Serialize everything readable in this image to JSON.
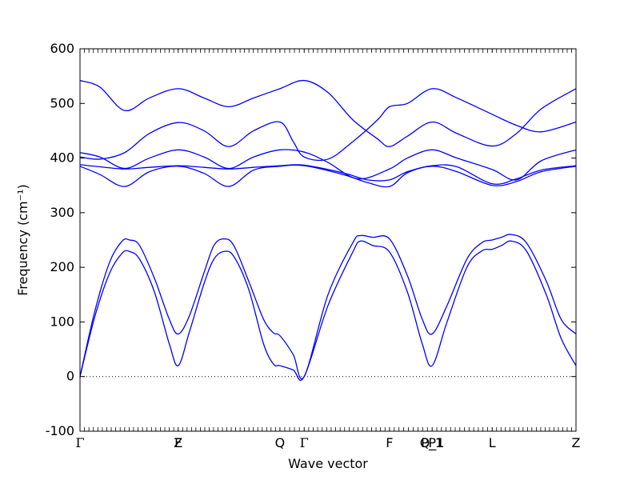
{
  "chart_data": {
    "type": "line",
    "title": "",
    "xlabel": "Wave vector",
    "ylabel": "Frequency (cm⁻¹)",
    "ylim": [
      -100,
      600
    ],
    "yticks": [
      -100,
      0,
      100,
      200,
      300,
      400,
      500,
      600
    ],
    "xlim": [
      0,
      1
    ],
    "grid": false,
    "legend": "none",
    "line_color": "#0000ff",
    "zero_line": 0,
    "high_symmetry_points": [
      {
        "label": "Γ",
        "x": 0.0
      },
      {
        "label": "F",
        "x": 0.198
      },
      {
        "label": "Z",
        "x": 0.198
      },
      {
        "label": "Q",
        "x": 0.403
      },
      {
        "label": "Γ",
        "x": 0.452
      },
      {
        "label": "F",
        "x": 0.624
      },
      {
        "label": "P",
        "x": 0.71
      },
      {
        "label": "P_1",
        "x": 0.71
      },
      {
        "label": "Q_1",
        "x": 0.71
      },
      {
        "label": "L",
        "x": 0.831
      },
      {
        "label": "Z",
        "x": 1.0
      }
    ],
    "series": [
      {
        "values": [
          [
            0.0,
            0
          ],
          [
            0.03,
            110
          ],
          [
            0.06,
            190
          ],
          [
            0.085,
            226
          ],
          [
            0.1,
            229
          ],
          [
            0.12,
            215
          ],
          [
            0.15,
            155
          ],
          [
            0.18,
            60
          ],
          [
            0.198,
            20
          ],
          [
            0.22,
            80
          ],
          [
            0.25,
            170
          ],
          [
            0.27,
            215
          ],
          [
            0.29,
            229
          ],
          [
            0.31,
            220
          ],
          [
            0.34,
            160
          ],
          [
            0.37,
            60
          ],
          [
            0.39,
            23
          ],
          [
            0.403,
            20
          ],
          [
            0.43,
            12
          ],
          [
            0.452,
            0
          ],
          [
            0.5,
            130
          ],
          [
            0.55,
            228
          ],
          [
            0.565,
            248
          ],
          [
            0.59,
            240
          ],
          [
            0.624,
            228
          ],
          [
            0.66,
            155
          ],
          [
            0.69,
            60
          ],
          [
            0.71,
            20
          ],
          [
            0.74,
            100
          ],
          [
            0.78,
            200
          ],
          [
            0.81,
            230
          ],
          [
            0.831,
            233
          ],
          [
            0.85,
            240
          ],
          [
            0.87,
            248
          ],
          [
            0.9,
            230
          ],
          [
            0.94,
            150
          ],
          [
            0.97,
            70
          ],
          [
            1.0,
            20
          ]
        ]
      },
      {
        "values": [
          [
            0.0,
            0
          ],
          [
            0.03,
            120
          ],
          [
            0.06,
            210
          ],
          [
            0.085,
            248
          ],
          [
            0.1,
            250
          ],
          [
            0.12,
            240
          ],
          [
            0.15,
            180
          ],
          [
            0.18,
            105
          ],
          [
            0.198,
            78
          ],
          [
            0.22,
            110
          ],
          [
            0.25,
            190
          ],
          [
            0.27,
            240
          ],
          [
            0.29,
            252
          ],
          [
            0.31,
            240
          ],
          [
            0.34,
            175
          ],
          [
            0.37,
            105
          ],
          [
            0.39,
            80
          ],
          [
            0.403,
            75
          ],
          [
            0.43,
            40
          ],
          [
            0.452,
            0
          ],
          [
            0.5,
            150
          ],
          [
            0.55,
            245
          ],
          [
            0.565,
            258
          ],
          [
            0.59,
            255
          ],
          [
            0.624,
            252
          ],
          [
            0.66,
            185
          ],
          [
            0.69,
            105
          ],
          [
            0.71,
            78
          ],
          [
            0.74,
            130
          ],
          [
            0.78,
            215
          ],
          [
            0.81,
            245
          ],
          [
            0.831,
            250
          ],
          [
            0.85,
            255
          ],
          [
            0.87,
            260
          ],
          [
            0.9,
            245
          ],
          [
            0.94,
            175
          ],
          [
            0.97,
            105
          ],
          [
            1.0,
            78
          ]
        ]
      },
      {
        "values": [
          [
            0.0,
            385
          ],
          [
            0.04,
            370
          ],
          [
            0.09,
            348
          ],
          [
            0.14,
            375
          ],
          [
            0.198,
            385
          ],
          [
            0.25,
            372
          ],
          [
            0.3,
            348
          ],
          [
            0.35,
            378
          ],
          [
            0.403,
            385
          ],
          [
            0.452,
            386
          ],
          [
            0.53,
            370
          ],
          [
            0.58,
            355
          ],
          [
            0.624,
            348
          ],
          [
            0.66,
            373
          ],
          [
            0.71,
            385
          ],
          [
            0.76,
            375
          ],
          [
            0.831,
            350
          ],
          [
            0.88,
            357
          ],
          [
            0.93,
            375
          ],
          [
            1.0,
            385
          ]
        ]
      },
      {
        "values": [
          [
            0.0,
            388
          ],
          [
            0.04,
            384
          ],
          [
            0.09,
            380
          ],
          [
            0.14,
            383
          ],
          [
            0.198,
            386
          ],
          [
            0.25,
            383
          ],
          [
            0.3,
            380
          ],
          [
            0.35,
            383
          ],
          [
            0.403,
            386
          ],
          [
            0.452,
            387
          ],
          [
            0.53,
            373
          ],
          [
            0.58,
            360
          ],
          [
            0.624,
            360
          ],
          [
            0.66,
            375
          ],
          [
            0.71,
            386
          ],
          [
            0.76,
            384
          ],
          [
            0.831,
            353
          ],
          [
            0.88,
            362
          ],
          [
            0.93,
            378
          ],
          [
            1.0,
            386
          ]
        ]
      },
      {
        "values": [
          [
            0.0,
            410
          ],
          [
            0.04,
            402
          ],
          [
            0.09,
            381
          ],
          [
            0.14,
            400
          ],
          [
            0.198,
            415
          ],
          [
            0.25,
            402
          ],
          [
            0.3,
            381
          ],
          [
            0.35,
            402
          ],
          [
            0.403,
            415
          ],
          [
            0.452,
            411
          ],
          [
            0.5,
            392
          ],
          [
            0.56,
            362
          ],
          [
            0.624,
            380
          ],
          [
            0.66,
            400
          ],
          [
            0.71,
            415
          ],
          [
            0.76,
            400
          ],
          [
            0.831,
            379
          ],
          [
            0.88,
            360
          ],
          [
            0.93,
            395
          ],
          [
            1.0,
            415
          ]
        ]
      },
      {
        "values": [
          [
            0.0,
            402
          ],
          [
            0.04,
            398
          ],
          [
            0.09,
            410
          ],
          [
            0.14,
            445
          ],
          [
            0.198,
            465
          ],
          [
            0.25,
            450
          ],
          [
            0.3,
            421
          ],
          [
            0.35,
            450
          ],
          [
            0.403,
            466
          ],
          [
            0.43,
            430
          ],
          [
            0.452,
            402
          ],
          [
            0.5,
            398
          ],
          [
            0.55,
            430
          ],
          [
            0.6,
            470
          ],
          [
            0.624,
            494
          ],
          [
            0.66,
            500
          ],
          [
            0.71,
            527
          ],
          [
            0.76,
            510
          ],
          [
            0.831,
            480
          ],
          [
            0.88,
            460
          ],
          [
            0.93,
            448
          ],
          [
            1.0,
            466
          ]
        ]
      },
      {
        "values": [
          [
            0.0,
            542
          ],
          [
            0.04,
            530
          ],
          [
            0.09,
            487
          ],
          [
            0.14,
            510
          ],
          [
            0.198,
            527
          ],
          [
            0.25,
            510
          ],
          [
            0.3,
            494
          ],
          [
            0.35,
            510
          ],
          [
            0.403,
            527
          ],
          [
            0.452,
            542
          ],
          [
            0.5,
            520
          ],
          [
            0.55,
            470
          ],
          [
            0.6,
            435
          ],
          [
            0.624,
            421
          ],
          [
            0.66,
            440
          ],
          [
            0.71,
            466
          ],
          [
            0.76,
            445
          ],
          [
            0.831,
            422
          ],
          [
            0.88,
            445
          ],
          [
            0.93,
            490
          ],
          [
            1.0,
            527
          ]
        ]
      }
    ]
  }
}
